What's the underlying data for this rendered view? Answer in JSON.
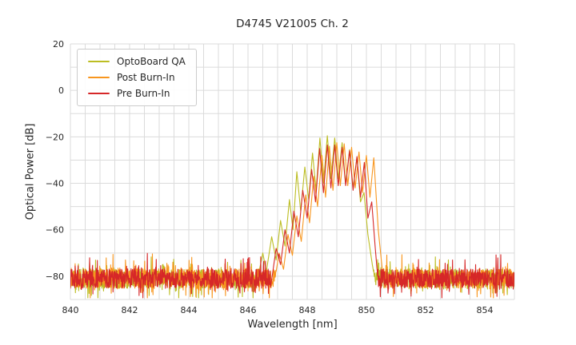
{
  "chart_data": {
    "type": "line",
    "title": "D4745 V21005 Ch. 2",
    "xlabel": "Wavelength [nm]",
    "ylabel": "Optical Power [dB]",
    "xlim": [
      840,
      855
    ],
    "ylim": [
      -90,
      20
    ],
    "x_ticks": {
      "values": [
        840,
        842,
        844,
        846,
        848,
        850,
        852,
        854
      ],
      "labels": [
        "840",
        "842",
        "844",
        "846",
        "848",
        "850",
        "852",
        "854"
      ]
    },
    "y_ticks": {
      "values": [
        20,
        0,
        -20,
        -40,
        -60,
        -80
      ],
      "labels": [
        "20",
        "0",
        "−20",
        "−40",
        "−60",
        "−80"
      ]
    },
    "grid": {
      "x_step": 0.5,
      "y_step": 10,
      "color": "#dbdbdb",
      "on": true
    },
    "legend_position": "upper-left",
    "noise_floor_dB": -81,
    "series": [
      {
        "name": "OptoBoard QA",
        "color": "#bcbd22",
        "noise": {
          "seed": 11,
          "mean": -81,
          "amp": 4.2,
          "spike_p": 0.1,
          "spike_up": 7,
          "spike_down": 6
        },
        "envelope_points": [
          [
            846.25,
            -86
          ],
          [
            846.5,
            -70
          ],
          [
            846.62,
            -78
          ],
          [
            846.8,
            -63
          ],
          [
            846.95,
            -73
          ],
          [
            847.1,
            -56
          ],
          [
            847.25,
            -67
          ],
          [
            847.4,
            -47
          ],
          [
            847.52,
            -60
          ],
          [
            847.65,
            -35
          ],
          [
            847.78,
            -52
          ],
          [
            847.92,
            -33
          ],
          [
            848.05,
            -47
          ],
          [
            848.18,
            -27
          ],
          [
            848.3,
            -43
          ],
          [
            848.43,
            -20.5
          ],
          [
            848.55,
            -40
          ],
          [
            848.68,
            -19.5
          ],
          [
            848.8,
            -38
          ],
          [
            848.93,
            -20.5
          ],
          [
            849.05,
            -38
          ],
          [
            849.18,
            -22.5
          ],
          [
            849.3,
            -40
          ],
          [
            849.43,
            -25.5
          ],
          [
            849.55,
            -42
          ],
          [
            849.68,
            -29
          ],
          [
            849.8,
            -48
          ],
          [
            849.92,
            -44
          ],
          [
            850.05,
            -62
          ],
          [
            850.2,
            -75
          ],
          [
            850.35,
            -86
          ]
        ]
      },
      {
        "name": "Post Burn-In",
        "color": "#f8961e",
        "noise": {
          "seed": 23,
          "mean": -81,
          "amp": 4.2,
          "spike_p": 0.1,
          "spike_up": 7,
          "spike_down": 6
        },
        "envelope_points": [
          [
            846.85,
            -86
          ],
          [
            847.05,
            -70
          ],
          [
            847.2,
            -77
          ],
          [
            847.35,
            -62
          ],
          [
            847.5,
            -71
          ],
          [
            847.65,
            -54
          ],
          [
            847.8,
            -65
          ],
          [
            847.95,
            -45
          ],
          [
            848.08,
            -57
          ],
          [
            848.22,
            -37
          ],
          [
            848.35,
            -50
          ],
          [
            848.5,
            -28
          ],
          [
            848.62,
            -46
          ],
          [
            848.75,
            -24
          ],
          [
            848.87,
            -43
          ],
          [
            849.0,
            -22.5
          ],
          [
            849.12,
            -41
          ],
          [
            849.25,
            -23
          ],
          [
            849.37,
            -41
          ],
          [
            849.5,
            -24.5
          ],
          [
            849.62,
            -42
          ],
          [
            849.75,
            -26.5
          ],
          [
            849.87,
            -44
          ],
          [
            850.0,
            -28
          ],
          [
            850.12,
            -46
          ],
          [
            850.25,
            -29
          ],
          [
            850.4,
            -60
          ],
          [
            850.52,
            -75
          ],
          [
            850.62,
            -86
          ]
        ]
      },
      {
        "name": "Pre Burn-In",
        "color": "#d62728",
        "noise": {
          "seed": 37,
          "mean": -81,
          "amp": 4.2,
          "spike_p": 0.1,
          "spike_up": 7,
          "spike_down": 6
        },
        "envelope_points": [
          [
            846.75,
            -86
          ],
          [
            846.95,
            -68
          ],
          [
            847.1,
            -75
          ],
          [
            847.25,
            -60
          ],
          [
            847.4,
            -70
          ],
          [
            847.55,
            -52
          ],
          [
            847.7,
            -63
          ],
          [
            847.85,
            -43
          ],
          [
            848.0,
            -55
          ],
          [
            848.15,
            -34
          ],
          [
            848.28,
            -48
          ],
          [
            848.42,
            -25
          ],
          [
            848.55,
            -44
          ],
          [
            848.68,
            -23.5
          ],
          [
            848.8,
            -42
          ],
          [
            848.93,
            -23.5
          ],
          [
            849.05,
            -41
          ],
          [
            849.18,
            -24.5
          ],
          [
            849.3,
            -41
          ],
          [
            849.43,
            -26
          ],
          [
            849.55,
            -43
          ],
          [
            849.68,
            -28.5
          ],
          [
            849.8,
            -46
          ],
          [
            849.93,
            -31
          ],
          [
            850.05,
            -55
          ],
          [
            850.18,
            -48
          ],
          [
            850.3,
            -68
          ],
          [
            850.42,
            -86
          ]
        ]
      }
    ]
  }
}
